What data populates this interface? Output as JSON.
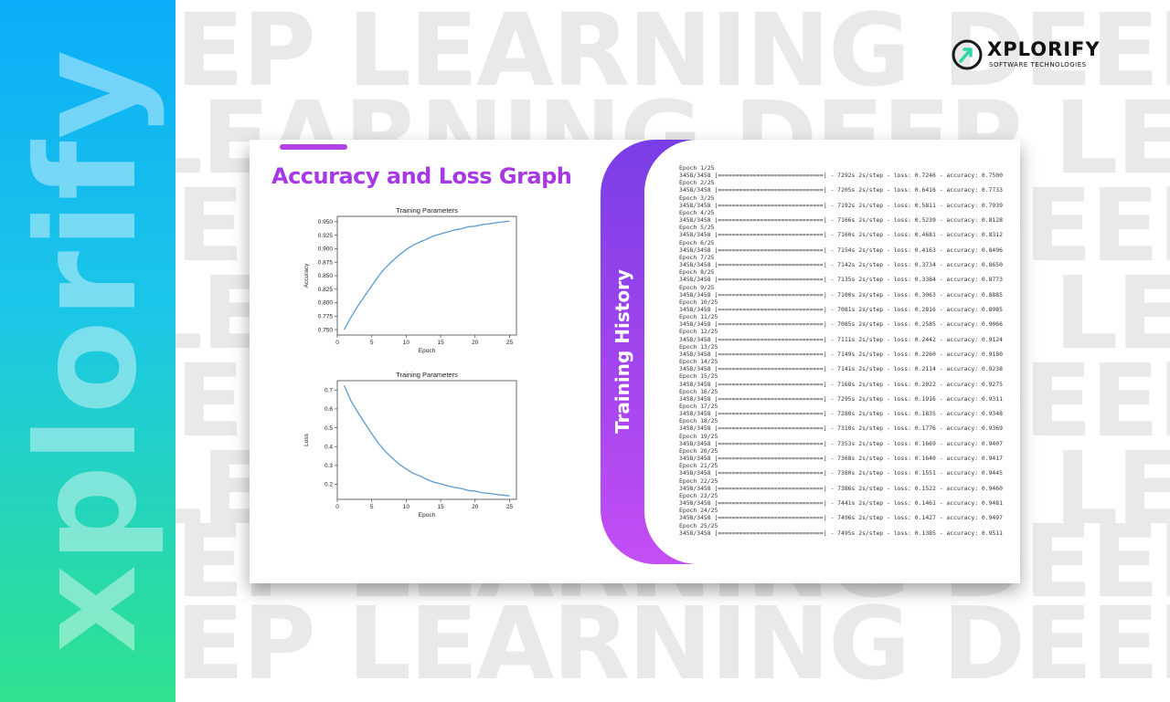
{
  "side_word": "xplorify",
  "background_lines": [
    "EP LEARNING DEEP",
    "LEARNING DEEP LE",
    "EP LEARNING DEEP",
    "LEARNING DEEP LE",
    "EP LEARNING DEEP",
    "LEARNING DEEP LE",
    "EP LEARNING DEEP",
    "EP LEARNING DEEP"
  ],
  "logo": {
    "name": "XPLORIFY",
    "tagline": "SOFTWARE TECHNOLOGIES",
    "icon": "xplorify-logo-icon",
    "color": "#2fd6a8"
  },
  "card": {
    "title": "Accuracy and Loss Graph",
    "accent": "#b341e8"
  },
  "training_tab": {
    "label": "Training History"
  },
  "chart_data": [
    {
      "type": "line",
      "title": "Training Parameters",
      "xlabel": "Epoch",
      "ylabel": "Accuracy",
      "xlim": [
        0,
        26
      ],
      "ylim": [
        0.74,
        0.96
      ],
      "xticks": [
        0,
        5,
        10,
        15,
        20,
        25
      ],
      "yticks": [
        0.75,
        0.775,
        0.8,
        0.825,
        0.85,
        0.875,
        0.9,
        0.925,
        0.95
      ],
      "ytick_labels": [
        "0.750",
        "0.775",
        "0.800",
        "0.825",
        "0.850",
        "0.875",
        "0.900",
        "0.925",
        "0.950"
      ],
      "x": [
        1,
        2,
        3,
        4,
        5,
        6,
        7,
        8,
        9,
        10,
        11,
        12,
        13,
        14,
        15,
        16,
        17,
        18,
        19,
        20,
        21,
        22,
        23,
        24,
        25
      ],
      "values": [
        0.75,
        0.7733,
        0.7939,
        0.8128,
        0.8312,
        0.8496,
        0.865,
        0.8773,
        0.8885,
        0.8985,
        0.9066,
        0.9124,
        0.918,
        0.9238,
        0.9275,
        0.9311,
        0.9348,
        0.9369,
        0.9407,
        0.9417,
        0.9445,
        0.946,
        0.9481,
        0.9497,
        0.9511
      ],
      "color": "#5b9bd0",
      "grid": false
    },
    {
      "type": "line",
      "title": "Training Parameters",
      "xlabel": "Epoch",
      "ylabel": "Loss",
      "xlim": [
        0,
        26
      ],
      "ylim": [
        0.12,
        0.75
      ],
      "xticks": [
        0,
        5,
        10,
        15,
        20,
        25
      ],
      "yticks": [
        0.2,
        0.3,
        0.4,
        0.5,
        0.6,
        0.7
      ],
      "ytick_labels": [
        "0.2",
        "0.3",
        "0.4",
        "0.5",
        "0.6",
        "0.7"
      ],
      "x": [
        1,
        2,
        3,
        4,
        5,
        6,
        7,
        8,
        9,
        10,
        11,
        12,
        13,
        14,
        15,
        16,
        17,
        18,
        19,
        20,
        21,
        22,
        23,
        24,
        25
      ],
      "values": [
        0.7246,
        0.6416,
        0.5811,
        0.5239,
        0.4681,
        0.4163,
        0.3734,
        0.3384,
        0.3063,
        0.2816,
        0.2585,
        0.2442,
        0.226,
        0.2114,
        0.2022,
        0.1916,
        0.1835,
        0.1776,
        0.1669,
        0.164,
        0.1551,
        0.1522,
        0.1461,
        0.1427,
        0.1385
      ],
      "color": "#5b9bd0",
      "grid": false
    }
  ],
  "history_lines": [
    "Epoch 1/25",
    "3458/3458 [==============================] - 7292s 2s/step - loss: 0.7246 - accuracy: 0.7500",
    "Epoch 2/25",
    "3458/3458 [==============================] - 7205s 2s/step - loss: 0.6416 - accuracy: 0.7733",
    "Epoch 3/25",
    "3458/3458 [==============================] - 7192s 2s/step - loss: 0.5811 - accuracy: 0.7939",
    "Epoch 4/25",
    "3458/3458 [==============================] - 7166s 2s/step - loss: 0.5239 - accuracy: 0.8128",
    "Epoch 5/25",
    "3458/3458 [==============================] - 7160s 2s/step - loss: 0.4681 - accuracy: 0.8312",
    "Epoch 6/25",
    "3458/3458 [==============================] - 7154s 2s/step - loss: 0.4163 - accuracy: 0.8496",
    "Epoch 7/25",
    "3458/3458 [==============================] - 7142s 2s/step - loss: 0.3734 - accuracy: 0.8650",
    "Epoch 8/25",
    "3458/3458 [==============================] - 7135s 2s/step - loss: 0.3384 - accuracy: 0.8773",
    "Epoch 9/25",
    "3458/3458 [==============================] - 7100s 2s/step - loss: 0.3063 - accuracy: 0.8885",
    "Epoch 10/25",
    "3458/3458 [==============================] - 7081s 2s/step - loss: 0.2816 - accuracy: 0.8985",
    "Epoch 11/25",
    "3458/3458 [==============================] - 7085s 2s/step - loss: 0.2585 - accuracy: 0.9066",
    "Epoch 12/25",
    "3458/3458 [==============================] - 7111s 2s/step - loss: 0.2442 - accuracy: 0.9124",
    "Epoch 13/25",
    "3458/3458 [==============================] - 7149s 2s/step - loss: 0.2260 - accuracy: 0.9180",
    "Epoch 14/25",
    "3458/3458 [==============================] - 7141s 2s/step - loss: 0.2114 - accuracy: 0.9238",
    "Epoch 15/25",
    "3458/3458 [==============================] - 7168s 2s/step - loss: 0.2022 - accuracy: 0.9275",
    "Epoch 16/25",
    "3458/3458 [==============================] - 7295s 2s/step - loss: 0.1916 - accuracy: 0.9311",
    "Epoch 17/25",
    "3458/3458 [==============================] - 7280s 2s/step - loss: 0.1835 - accuracy: 0.9348",
    "Epoch 18/25",
    "3458/3458 [==============================] - 7310s 2s/step - loss: 0.1776 - accuracy: 0.9369",
    "Epoch 19/25",
    "3458/3458 [==============================] - 7353s 2s/step - loss: 0.1669 - accuracy: 0.9407",
    "Epoch 20/25",
    "3458/3458 [==============================] - 7368s 2s/step - loss: 0.1640 - accuracy: 0.9417",
    "Epoch 21/25",
    "3458/3458 [==============================] - 7380s 2s/step - loss: 0.1551 - accuracy: 0.9445",
    "Epoch 22/25",
    "3458/3458 [==============================] - 7386s 2s/step - loss: 0.1522 - accuracy: 0.9460",
    "Epoch 23/25",
    "3458/3458 [==============================] - 7441s 2s/step - loss: 0.1461 - accuracy: 0.9481",
    "Epoch 24/25",
    "3458/3458 [==============================] - 7496s 2s/step - loss: 0.1427 - accuracy: 0.9497",
    "Epoch 25/25",
    "3458/3458 [==============================] - 7495s 2s/step - loss: 0.1385 - accuracy: 0.9511"
  ]
}
